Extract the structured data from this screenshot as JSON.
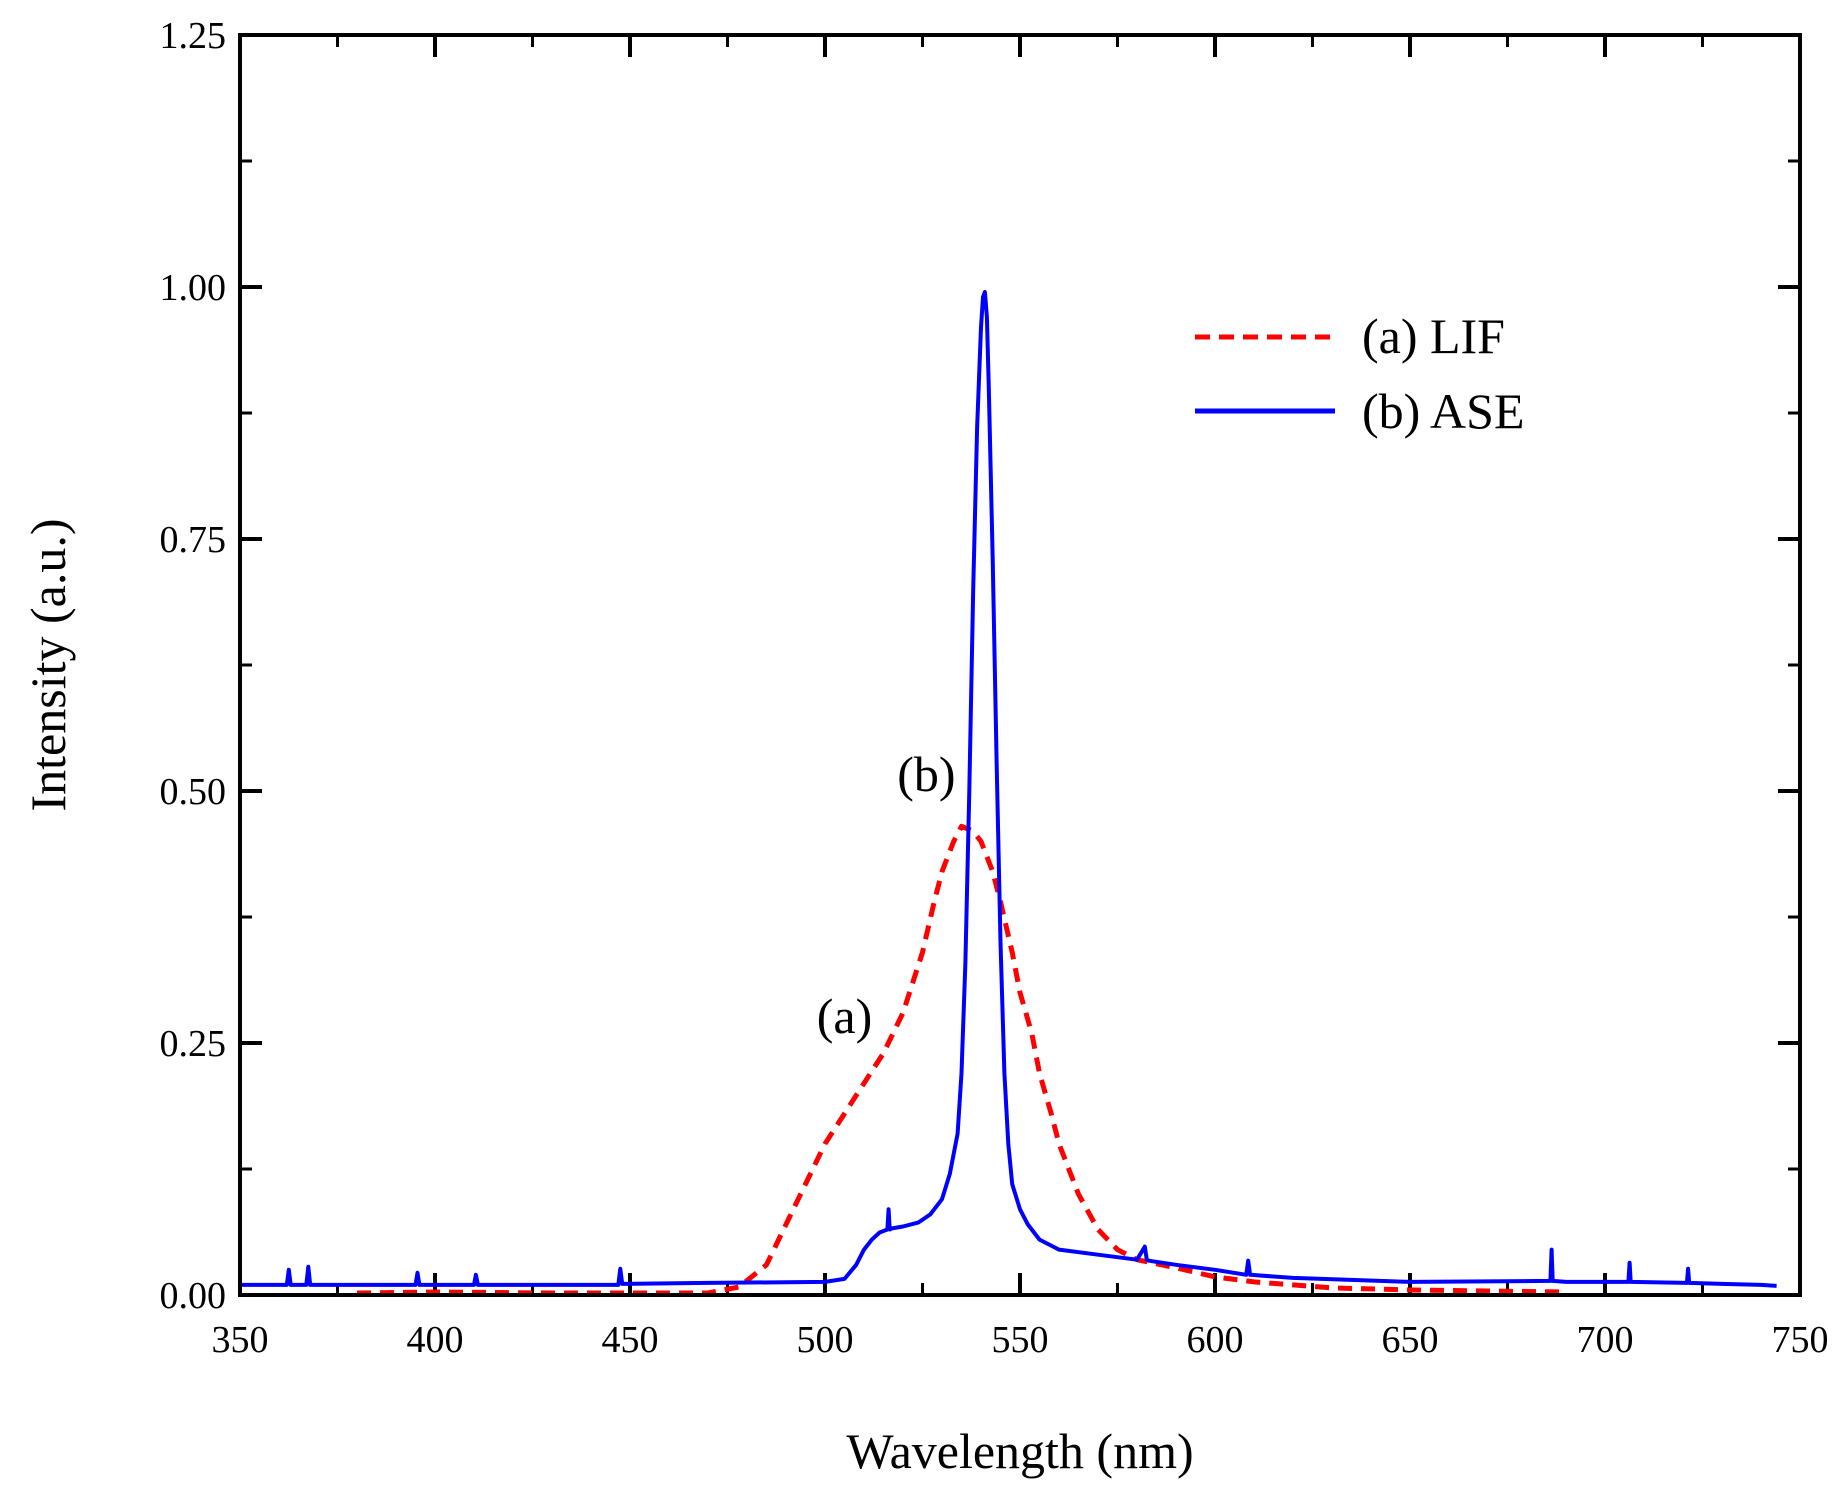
{
  "chart_data": {
    "type": "line",
    "title": "",
    "xlabel": "Wavelength (nm)",
    "ylabel": "Intensity (a.u.)",
    "xlim": [
      350,
      750
    ],
    "ylim": [
      0,
      1.25
    ],
    "xticks": [
      "350",
      "400",
      "450",
      "500",
      "550",
      "600",
      "650",
      "700",
      "750"
    ],
    "xtick_values": [
      350,
      400,
      450,
      500,
      550,
      600,
      650,
      700,
      750
    ],
    "yticks": [
      "0.00",
      "0.25",
      "0.50",
      "0.75",
      "1.00",
      "1.25"
    ],
    "ytick_values": [
      0,
      0.25,
      0.5,
      0.75,
      1.0,
      1.25
    ],
    "grid": false,
    "legend_position": "top-right",
    "series": [
      {
        "name": "(a) LIF",
        "color": "#ff0000",
        "style": "dashed",
        "x": [
          380,
          400,
          430,
          460,
          470,
          478,
          485,
          490,
          495,
          500,
          505,
          510,
          515,
          520,
          525,
          528,
          530,
          533,
          535,
          538,
          540,
          543,
          545,
          548,
          550,
          553,
          555,
          558,
          560,
          565,
          570,
          575,
          580,
          590,
          600,
          610,
          620,
          630,
          650,
          670,
          690
        ],
        "values": [
          0.002,
          0.003,
          0.002,
          0.002,
          0.002,
          0.008,
          0.03,
          0.07,
          0.11,
          0.15,
          0.18,
          0.21,
          0.24,
          0.28,
          0.34,
          0.39,
          0.42,
          0.45,
          0.465,
          0.46,
          0.45,
          0.42,
          0.39,
          0.34,
          0.3,
          0.26,
          0.22,
          0.18,
          0.15,
          0.1,
          0.065,
          0.045,
          0.035,
          0.027,
          0.018,
          0.013,
          0.01,
          0.007,
          0.005,
          0.004,
          0.003
        ]
      },
      {
        "name": "(b) ASE",
        "color": "#0000ff",
        "style": "solid",
        "x": [
          350,
          362,
          362.5,
          363,
          367,
          367.5,
          368,
          395,
          395.5,
          396,
          410,
          410.5,
          411,
          447,
          447.5,
          448,
          470,
          500,
          505,
          508,
          510,
          512,
          514,
          516,
          516.3,
          516.6,
          517,
          520,
          524,
          527,
          530,
          532,
          534,
          535,
          536,
          537,
          538,
          539,
          540,
          540.5,
          541,
          541.5,
          542,
          543,
          544,
          545,
          546,
          547,
          548,
          550,
          552,
          555,
          560,
          570,
          580,
          582,
          582.5,
          583,
          590,
          600,
          608,
          608.5,
          609,
          620,
          650,
          686,
          686.3,
          686.6,
          690,
          706,
          706.3,
          706.6,
          721,
          721.3,
          721.6,
          730,
          740,
          744
        ],
        "values": [
          0.01,
          0.01,
          0.025,
          0.01,
          0.01,
          0.028,
          0.01,
          0.01,
          0.022,
          0.01,
          0.01,
          0.02,
          0.01,
          0.01,
          0.026,
          0.011,
          0.012,
          0.013,
          0.016,
          0.03,
          0.045,
          0.055,
          0.062,
          0.065,
          0.085,
          0.065,
          0.066,
          0.068,
          0.072,
          0.08,
          0.095,
          0.12,
          0.16,
          0.22,
          0.33,
          0.5,
          0.7,
          0.86,
          0.96,
          0.99,
          0.995,
          0.97,
          0.9,
          0.73,
          0.53,
          0.35,
          0.22,
          0.15,
          0.11,
          0.085,
          0.07,
          0.055,
          0.045,
          0.04,
          0.035,
          0.048,
          0.035,
          0.034,
          0.03,
          0.025,
          0.02,
          0.034,
          0.02,
          0.017,
          0.013,
          0.014,
          0.045,
          0.014,
          0.013,
          0.013,
          0.032,
          0.013,
          0.012,
          0.026,
          0.012,
          0.011,
          0.01,
          0.009
        ]
      }
    ],
    "annotations": [
      {
        "text": "(a)",
        "x": 505,
        "y": 0.26
      },
      {
        "text": "(b)",
        "x": 526,
        "y": 0.5
      }
    ]
  }
}
